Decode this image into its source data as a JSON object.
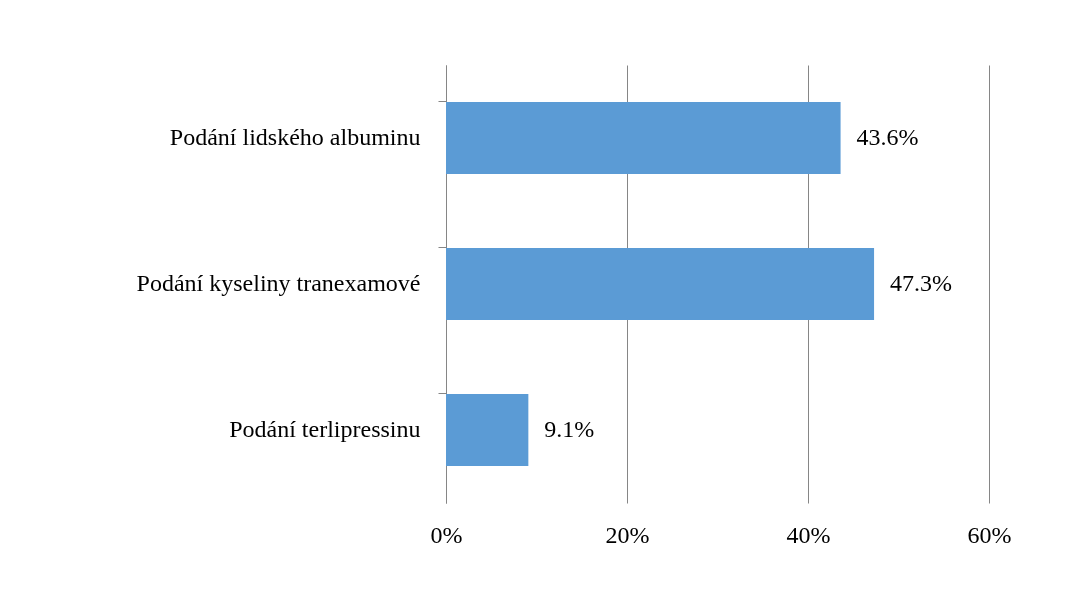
{
  "chart_data": {
    "type": "bar",
    "orientation": "horizontal",
    "categories": [
      "Podání lidského albuminu",
      "Podání kyseliny tranexamové",
      "Podání terlipressinu"
    ],
    "values": [
      43.6,
      47.3,
      9.1
    ],
    "value_labels": [
      "43.6%",
      "47.3%",
      "9.1%"
    ],
    "color": "#5b9bd5",
    "xlim": [
      0,
      60
    ],
    "xticks": [
      {
        "value": 0,
        "label": "0%"
      },
      {
        "value": 20,
        "label": "20%"
      },
      {
        "value": 40,
        "label": "40%"
      },
      {
        "value": 60,
        "label": "60%"
      }
    ],
    "grid": "x"
  }
}
